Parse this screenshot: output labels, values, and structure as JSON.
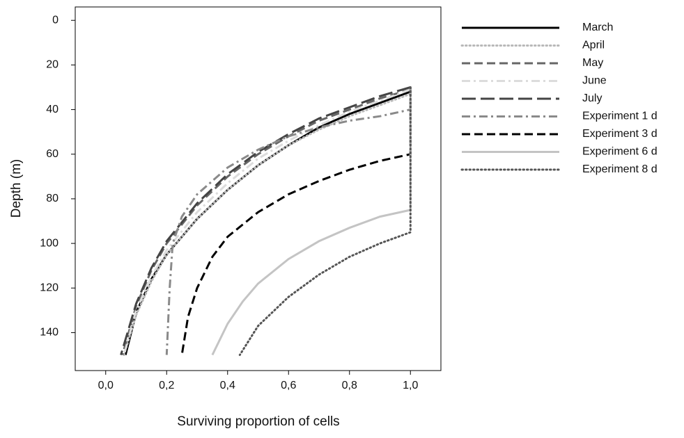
{
  "chart_data": {
    "type": "line",
    "x_label": "Surviving proportion of cells",
    "y_label": "Depth (m)",
    "xlim": [
      -0.1,
      1.1
    ],
    "ylim": [
      -6,
      157
    ],
    "y_inverted": true,
    "xticks": [
      {
        "value": 0,
        "label": "0,0"
      },
      {
        "value": 0.2,
        "label": "0,2"
      },
      {
        "value": 0.4,
        "label": "0,4"
      },
      {
        "value": 0.6,
        "label": "0,6"
      },
      {
        "value": 0.8,
        "label": "0,8"
      },
      {
        "value": 1,
        "label": "1,0"
      }
    ],
    "yticks": [
      0,
      20,
      40,
      60,
      80,
      100,
      120,
      140
    ],
    "legend": "outside-right",
    "series": [
      {
        "name": "March",
        "color": "#000000",
        "style": "solid",
        "x": [
          1,
          0.9,
          0.8,
          0.7,
          0.6,
          0.5,
          0.4,
          0.3,
          0.2,
          0.15,
          0.1,
          0.065
        ],
        "values": [
          32,
          37,
          42,
          48,
          56,
          65,
          76,
          89,
          105,
          116,
          131,
          150
        ]
      },
      {
        "name": "April",
        "color": "#b8b8b8",
        "style": "dotted",
        "x": [
          1,
          0.9,
          0.8,
          0.7,
          0.6,
          0.5,
          0.4,
          0.3,
          0.2,
          0.15,
          0.1,
          0.06
        ],
        "values": [
          33,
          38,
          43,
          49,
          56,
          65,
          76,
          89,
          105,
          117,
          132,
          150
        ]
      },
      {
        "name": "May",
        "color": "#666666",
        "style": "dashed",
        "x": [
          1,
          0.9,
          0.8,
          0.7,
          0.6,
          0.5,
          0.4,
          0.3,
          0.2,
          0.15,
          0.1,
          0.055
        ],
        "values": [
          31,
          35,
          40,
          45,
          52,
          60,
          70,
          83,
          100,
          112,
          128,
          150
        ]
      },
      {
        "name": "June",
        "color": "#dcdcdc",
        "style": "dashdot",
        "x": [
          1,
          0.9,
          0.8,
          0.7,
          0.6,
          0.5,
          0.4,
          0.3,
          0.2,
          0.15,
          0.1,
          0.06
        ],
        "values": [
          31,
          36,
          41,
          47,
          54,
          62,
          73,
          86,
          103,
          115,
          130,
          150
        ]
      },
      {
        "name": "July",
        "color": "#444444",
        "style": "longdash",
        "x": [
          1,
          0.9,
          0.8,
          0.7,
          0.6,
          0.5,
          0.4,
          0.3,
          0.2,
          0.15,
          0.1,
          0.05
        ],
        "values": [
          30,
          34,
          39,
          44,
          51,
          59,
          69,
          82,
          99,
          111,
          127,
          150
        ]
      },
      {
        "name": "Experiment 1 d",
        "color": "#8a8a8a",
        "style": "dashdot",
        "x": [
          1,
          1,
          0.9,
          0.8,
          0.7,
          0.6,
          0.5,
          0.4,
          0.3,
          0.25,
          0.22,
          0.21,
          0.2
        ],
        "values": [
          30,
          40,
          43,
          45,
          48,
          52,
          58,
          66,
          78,
          88,
          100,
          120,
          150
        ]
      },
      {
        "name": "Experiment 3 d",
        "color": "#000000",
        "style": "dashed",
        "x": [
          1,
          1,
          0.9,
          0.8,
          0.7,
          0.6,
          0.5,
          0.4,
          0.35,
          0.3,
          0.27,
          0.25
        ],
        "values": [
          30,
          60,
          63,
          67,
          72,
          78,
          86,
          97,
          106,
          120,
          133,
          150
        ]
      },
      {
        "name": "Experiment 6 d",
        "color": "#c4c4c4",
        "style": "solid",
        "x": [
          1,
          1,
          0.9,
          0.8,
          0.7,
          0.6,
          0.5,
          0.45,
          0.4,
          0.35
        ],
        "values": [
          30,
          85,
          88,
          93,
          99,
          107,
          118,
          126,
          136,
          150
        ]
      },
      {
        "name": "Experiment 8 d",
        "color": "#555555",
        "style": "dotted",
        "x": [
          1,
          1,
          0.9,
          0.8,
          0.7,
          0.6,
          0.5,
          0.44
        ],
        "values": [
          30,
          95,
          100,
          106,
          114,
          124,
          137,
          150
        ]
      }
    ]
  }
}
